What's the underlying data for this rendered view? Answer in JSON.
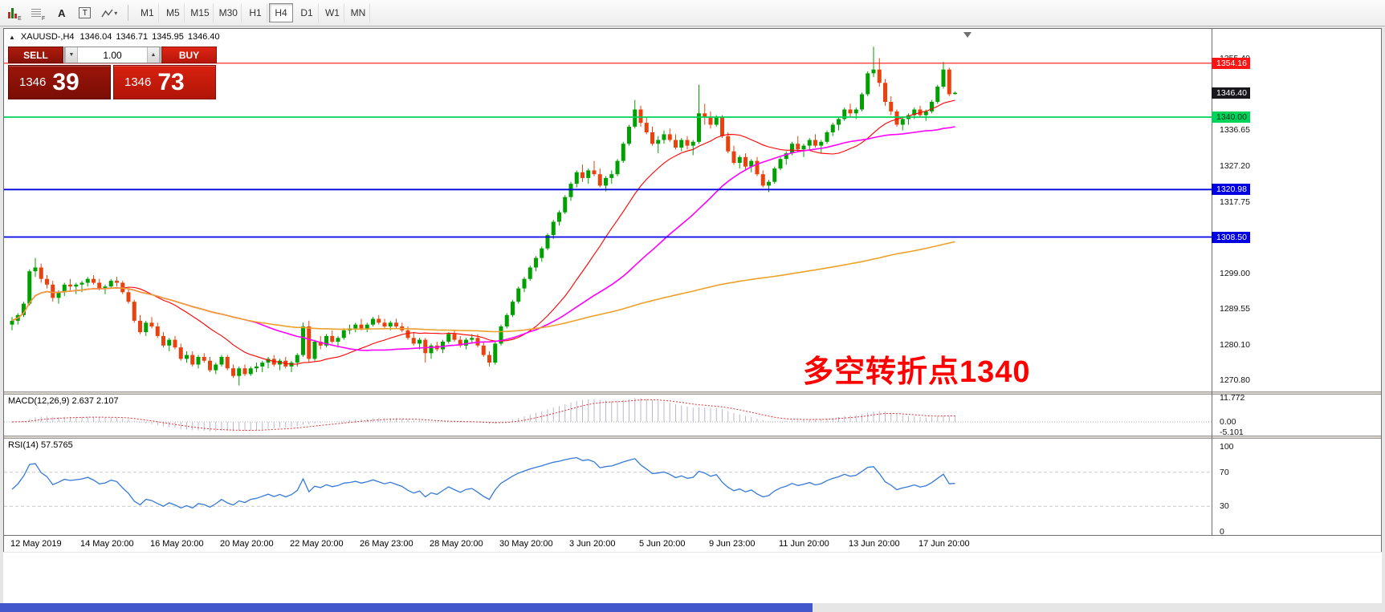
{
  "toolbar": {
    "icons": [
      {
        "name": "candlestick-chart-icon",
        "kind": "candles",
        "sub": "E"
      },
      {
        "name": "market-depth-grid-icon",
        "kind": "grid",
        "sub": "F"
      },
      {
        "name": "text-annotation-icon",
        "kind": "letter",
        "glyph": "A"
      },
      {
        "name": "text-label-icon",
        "kind": "boxed",
        "glyph": "T"
      },
      {
        "name": "draw-tools-icon",
        "kind": "draw"
      }
    ],
    "timeframes": [
      {
        "label": "M1"
      },
      {
        "label": "M5"
      },
      {
        "label": "M15"
      },
      {
        "label": "M30"
      },
      {
        "label": "H1"
      },
      {
        "label": "H4",
        "active": true
      },
      {
        "label": "D1"
      },
      {
        "label": "W1"
      },
      {
        "label": "MN"
      }
    ]
  },
  "chart": {
    "title_symbol": "XAUUSD-,H4",
    "ohlc": {
      "open": "1346.04",
      "high": "1346.71",
      "low": "1345.95",
      "close": "1346.40"
    },
    "one_click": {
      "sell_label": "SELL",
      "buy_label": "BUY",
      "volume": "1.00",
      "down_glyph": "▼",
      "up_glyph": "▲",
      "bid_int": "1346",
      "bid_frac": "39",
      "ask_int": "1346",
      "ask_frac": "73"
    },
    "price_scale": {
      "ticks": [
        {
          "price": 1355.4,
          "label": "1355.40"
        },
        {
          "price": 1336.65,
          "label": "1336.65"
        },
        {
          "price": 1327.2,
          "label": "1327.20"
        },
        {
          "price": 1317.75,
          "label": "1317.75"
        },
        {
          "price": 1299.0,
          "label": "1299.00"
        },
        {
          "price": 1289.55,
          "label": "1289.55"
        },
        {
          "price": 1280.1,
          "label": "1280.10"
        },
        {
          "price": 1270.8,
          "label": "1270.80"
        }
      ],
      "current_price_badge": {
        "price": 1346.4,
        "text": "1346.40",
        "bg": "#17171c",
        "fg": "#ffffff"
      }
    },
    "time_axis": {
      "labels": [
        "12 May 2019",
        "14 May 20:00",
        "16 May 20:00",
        "20 May 20:00",
        "22 May 20:00",
        "26 May 23:00",
        "28 May 20:00",
        "30 May 20:00",
        "3 Jun 20:00",
        "5 Jun 20:00",
        "9 Jun 23:00",
        "11 Jun 20:00",
        "13 Jun 20:00",
        "17 Jun 20:00"
      ]
    }
  },
  "macd": {
    "label": "MACD(12,26,9) 2.637 2.107",
    "ticks": [
      {
        "value": 11.772,
        "label": "11.772"
      },
      {
        "value": 0,
        "label": "0.00"
      },
      {
        "value": -5.101,
        "label": "-5.101"
      }
    ]
  },
  "rsi": {
    "label": "RSI(14) 57.5765",
    "ticks": [
      {
        "value": 100,
        "label": "100"
      },
      {
        "value": 70,
        "label": "70"
      },
      {
        "value": 30,
        "label": "30"
      },
      {
        "value": 0,
        "label": "0"
      }
    ],
    "levels": [
      70,
      30
    ]
  },
  "chart_data": {
    "type": "candlestick",
    "symbol": "XAUUSD-",
    "timeframe": "H4",
    "up_color": "#00a000",
    "down_color": "#e8420e",
    "price_range_visible": [
      1268,
      1363
    ],
    "moving_averages": [
      {
        "period": 20,
        "color": "#ff0000",
        "width": 1.1
      },
      {
        "period": 40,
        "color": "#ff00ff",
        "width": 1.6
      },
      {
        "period": 150,
        "color": "#eda128",
        "width": 1.6
      }
    ],
    "horizontal_lines": [
      {
        "price": 1354.16,
        "color": "#ff1414",
        "width": 1.2,
        "badge": {
          "text": "1354.16",
          "bg": "#ff1414",
          "fg": "#ffffff"
        }
      },
      {
        "price": 1340.0,
        "color": "#00d25a",
        "width": 1.8,
        "badge": {
          "text": "1340.00",
          "bg": "#00d25a",
          "fg": "#00331a"
        }
      },
      {
        "price": 1320.98,
        "color": "#0000e0",
        "width": 1.8,
        "badge": {
          "text": "1320.98",
          "bg": "#0000e0",
          "fg": "#ffffff"
        }
      },
      {
        "price": 1308.5,
        "color": "#0000e0",
        "width": 1.8,
        "badge": {
          "text": "1308.50",
          "bg": "#0000e0",
          "fg": "#ffffff"
        }
      }
    ],
    "annotations": [
      {
        "text": "多空转折点1340",
        "color": "#ff0000"
      }
    ],
    "macd_values": {
      "macd": 2.637,
      "signal": 2.107
    },
    "rsi_value": 57.5765,
    "candles": [
      [
        1285.5,
        1287.5,
        1284,
        1286.5
      ],
      [
        1286.5,
        1288.5,
        1285.5,
        1288
      ],
      [
        1288,
        1291.5,
        1287.5,
        1291
      ],
      [
        1291,
        1300,
        1290.5,
        1299.5
      ],
      [
        1299.5,
        1303,
        1298,
        1300.5
      ],
      [
        1300.5,
        1301.5,
        1296.5,
        1297.5
      ],
      [
        1297.5,
        1298.5,
        1295,
        1296
      ],
      [
        1296,
        1297,
        1291.5,
        1292.5
      ],
      [
        1292.5,
        1294.5,
        1291,
        1294
      ],
      [
        1294,
        1296.5,
        1293,
        1296
      ],
      [
        1296,
        1297.5,
        1294.5,
        1295.5
      ],
      [
        1295.5,
        1296.5,
        1293.5,
        1296
      ],
      [
        1296,
        1297,
        1294,
        1296.5
      ],
      [
        1296.5,
        1298,
        1295.5,
        1297.5
      ],
      [
        1297.5,
        1298.5,
        1296,
        1296.5
      ],
      [
        1296.5,
        1297.5,
        1294.5,
        1295
      ],
      [
        1295,
        1296,
        1293.5,
        1295.5
      ],
      [
        1295.5,
        1297.5,
        1295,
        1297
      ],
      [
        1297,
        1298,
        1295.5,
        1296.5
      ],
      [
        1296.5,
        1297,
        1293.5,
        1294
      ],
      [
        1294,
        1295,
        1291,
        1291.5
      ],
      [
        1291.5,
        1292,
        1286,
        1286.5
      ],
      [
        1286.5,
        1288,
        1283,
        1283.5
      ],
      [
        1283.5,
        1286.5,
        1282.5,
        1286
      ],
      [
        1286,
        1287.5,
        1284.5,
        1285
      ],
      [
        1285,
        1286,
        1282,
        1282.5
      ],
      [
        1282.5,
        1283.5,
        1279.5,
        1280
      ],
      [
        1280,
        1282,
        1278.5,
        1281.5
      ],
      [
        1281.5,
        1282.5,
        1279,
        1279.5
      ],
      [
        1279.5,
        1280.5,
        1276,
        1276.5
      ],
      [
        1276.5,
        1278.5,
        1275.5,
        1277.5
      ],
      [
        1277.5,
        1278.5,
        1274.5,
        1275
      ],
      [
        1275,
        1277.5,
        1274,
        1277
      ],
      [
        1277,
        1278,
        1275.5,
        1276
      ],
      [
        1276,
        1277,
        1273,
        1273.5
      ],
      [
        1273.5,
        1275.5,
        1272.5,
        1275
      ],
      [
        1275,
        1277.5,
        1274.5,
        1277
      ],
      [
        1277,
        1277.5,
        1273.5,
        1274
      ],
      [
        1274,
        1275,
        1271.5,
        1272
      ],
      [
        1272,
        1274.5,
        1269.5,
        1274
      ],
      [
        1274,
        1275,
        1272,
        1272.5
      ],
      [
        1272.5,
        1274.5,
        1272,
        1274
      ],
      [
        1274,
        1275.5,
        1273,
        1274.5
      ],
      [
        1274.5,
        1276,
        1273,
        1275.5
      ],
      [
        1275.5,
        1277,
        1274,
        1276.5
      ],
      [
        1276.5,
        1277.5,
        1274.5,
        1275
      ],
      [
        1275,
        1276.5,
        1273.5,
        1276
      ],
      [
        1276,
        1277,
        1274,
        1274.5
      ],
      [
        1274.5,
        1276,
        1273,
        1275.5
      ],
      [
        1275.5,
        1278,
        1274.5,
        1277.5
      ],
      [
        1277.5,
        1286,
        1277,
        1285
      ],
      [
        1285,
        1286.5,
        1275.5,
        1276.5
      ],
      [
        1276.5,
        1281.5,
        1276,
        1281
      ],
      [
        1281,
        1282.5,
        1279,
        1280
      ],
      [
        1280,
        1283,
        1279.5,
        1282.5
      ],
      [
        1282.5,
        1284,
        1280.5,
        1281
      ],
      [
        1281,
        1282.5,
        1279.5,
        1282
      ],
      [
        1282,
        1284.5,
        1281.5,
        1284
      ],
      [
        1284,
        1285.5,
        1283,
        1284.5
      ],
      [
        1284.5,
        1286,
        1283.5,
        1285.5
      ],
      [
        1285.5,
        1287,
        1284,
        1284.5
      ],
      [
        1284.5,
        1286,
        1283.5,
        1285.5
      ],
      [
        1285.5,
        1287.5,
        1285,
        1287
      ],
      [
        1287,
        1288,
        1285.5,
        1286
      ],
      [
        1286,
        1287,
        1284.5,
        1285
      ],
      [
        1285,
        1286.5,
        1284,
        1286
      ],
      [
        1286,
        1287,
        1284.5,
        1285
      ],
      [
        1285,
        1286,
        1283.5,
        1284
      ],
      [
        1284,
        1285,
        1281.5,
        1282
      ],
      [
        1282,
        1283.5,
        1280,
        1280.5
      ],
      [
        1280.5,
        1282,
        1279,
        1281.5
      ],
      [
        1281.5,
        1282,
        1275.5,
        1278
      ],
      [
        1278,
        1280.5,
        1276.5,
        1280
      ],
      [
        1280,
        1281,
        1278.5,
        1279
      ],
      [
        1279,
        1281.5,
        1278,
        1281
      ],
      [
        1281,
        1283.5,
        1280.5,
        1283
      ],
      [
        1283,
        1284,
        1281,
        1281.5
      ],
      [
        1281.5,
        1282.5,
        1279.5,
        1280
      ],
      [
        1280,
        1282,
        1279,
        1281.5
      ],
      [
        1281.5,
        1283,
        1280.5,
        1282
      ],
      [
        1282,
        1283,
        1279.5,
        1280
      ],
      [
        1280,
        1281,
        1277,
        1277.5
      ],
      [
        1277.5,
        1278.5,
        1274.5,
        1275.5
      ],
      [
        1275.5,
        1281,
        1275,
        1280.5
      ],
      [
        1280.5,
        1285.5,
        1280,
        1285
      ],
      [
        1285,
        1288.5,
        1284.5,
        1288
      ],
      [
        1288,
        1292,
        1287.5,
        1291.5
      ],
      [
        1291.5,
        1295.5,
        1291,
        1295
      ],
      [
        1295,
        1298,
        1294,
        1297.5
      ],
      [
        1297.5,
        1301,
        1297,
        1300.5
      ],
      [
        1300.5,
        1303.5,
        1299.5,
        1303
      ],
      [
        1303,
        1306,
        1302,
        1305.5
      ],
      [
        1305.5,
        1309.5,
        1305,
        1309
      ],
      [
        1309,
        1313,
        1308,
        1312.5
      ],
      [
        1312.5,
        1315.5,
        1311.5,
        1315
      ],
      [
        1315,
        1319.5,
        1314.5,
        1319
      ],
      [
        1319,
        1323,
        1318,
        1322.5
      ],
      [
        1322.5,
        1326,
        1321.5,
        1325.5
      ],
      [
        1325.5,
        1327.5,
        1323,
        1324
      ],
      [
        1324,
        1326.5,
        1322.5,
        1326
      ],
      [
        1326,
        1328.5,
        1324.5,
        1325
      ],
      [
        1325,
        1326.5,
        1321.5,
        1322
      ],
      [
        1322,
        1324.5,
        1320.5,
        1324
      ],
      [
        1324,
        1326,
        1322.5,
        1325
      ],
      [
        1325,
        1329,
        1324.5,
        1328.5
      ],
      [
        1328.5,
        1333.5,
        1328,
        1333
      ],
      [
        1333,
        1338,
        1332.5,
        1337.5
      ],
      [
        1337.5,
        1344.5,
        1337,
        1342
      ],
      [
        1342,
        1343,
        1337.5,
        1338.5
      ],
      [
        1338.5,
        1340,
        1335.5,
        1336
      ],
      [
        1336,
        1337.5,
        1332.5,
        1333
      ],
      [
        1333,
        1335,
        1330.5,
        1334
      ],
      [
        1334,
        1336.5,
        1333,
        1335.5
      ],
      [
        1335.5,
        1337,
        1333.5,
        1334
      ],
      [
        1334,
        1335.5,
        1331.5,
        1332
      ],
      [
        1332,
        1334.5,
        1331,
        1334
      ],
      [
        1334,
        1335,
        1331.5,
        1332.5
      ],
      [
        1332.5,
        1334,
        1330,
        1333.5
      ],
      [
        1333.5,
        1348.5,
        1333,
        1341
      ],
      [
        1341,
        1343.5,
        1338,
        1340
      ],
      [
        1340,
        1341.5,
        1337,
        1338
      ],
      [
        1338,
        1340.5,
        1337.5,
        1340
      ],
      [
        1340,
        1340.5,
        1334.5,
        1335
      ],
      [
        1335,
        1336,
        1330.5,
        1331
      ],
      [
        1331,
        1332.5,
        1327.5,
        1328
      ],
      [
        1328,
        1330,
        1326.5,
        1329.5
      ],
      [
        1329.5,
        1330.5,
        1326,
        1327
      ],
      [
        1327,
        1329,
        1325.5,
        1328.5
      ],
      [
        1328.5,
        1329.5,
        1324.5,
        1325
      ],
      [
        1325,
        1326,
        1321.5,
        1322
      ],
      [
        1322,
        1323.5,
        1320.3,
        1323
      ],
      [
        1323,
        1327,
        1322.5,
        1326.5
      ],
      [
        1326.5,
        1329.5,
        1326,
        1329
      ],
      [
        1329,
        1331,
        1327.5,
        1330.5
      ],
      [
        1330.5,
        1333.5,
        1330,
        1333
      ],
      [
        1333,
        1335,
        1331,
        1331.5
      ],
      [
        1331.5,
        1333,
        1329.5,
        1332.5
      ],
      [
        1332.5,
        1334.5,
        1331.5,
        1334
      ],
      [
        1334,
        1335.5,
        1332,
        1332.5
      ],
      [
        1332.5,
        1334,
        1330.5,
        1333.5
      ],
      [
        1333.5,
        1336.5,
        1333,
        1336
      ],
      [
        1336,
        1338.5,
        1335,
        1338
      ],
      [
        1338,
        1340,
        1336.5,
        1339.5
      ],
      [
        1339.5,
        1342.5,
        1339,
        1342
      ],
      [
        1342,
        1343.5,
        1340,
        1341
      ],
      [
        1341,
        1342.5,
        1339.5,
        1342
      ],
      [
        1342,
        1346.5,
        1341.5,
        1346
      ],
      [
        1346,
        1352,
        1345.5,
        1351.5
      ],
      [
        1351.5,
        1358.5,
        1350.5,
        1352.5
      ],
      [
        1352.5,
        1355.5,
        1348,
        1349
      ],
      [
        1349,
        1350,
        1343,
        1344
      ],
      [
        1344,
        1345.5,
        1340.5,
        1341.5
      ],
      [
        1341.5,
        1342,
        1337.5,
        1338
      ],
      [
        1338,
        1340,
        1336.5,
        1339.5
      ],
      [
        1339.5,
        1341,
        1338,
        1340.5
      ],
      [
        1340.5,
        1342.5,
        1339.5,
        1342
      ],
      [
        1342,
        1343,
        1340,
        1340.5
      ],
      [
        1340.5,
        1342,
        1339,
        1341.5
      ],
      [
        1341.5,
        1344.5,
        1341,
        1344
      ],
      [
        1344,
        1348.5,
        1343.5,
        1348
      ],
      [
        1348,
        1354.5,
        1347.5,
        1352.5
      ],
      [
        1352.5,
        1353,
        1345.5,
        1346
      ],
      [
        1346.04,
        1346.71,
        1345.95,
        1346.4
      ]
    ]
  },
  "bottom": {
    "strip_color": "#4157cb"
  }
}
